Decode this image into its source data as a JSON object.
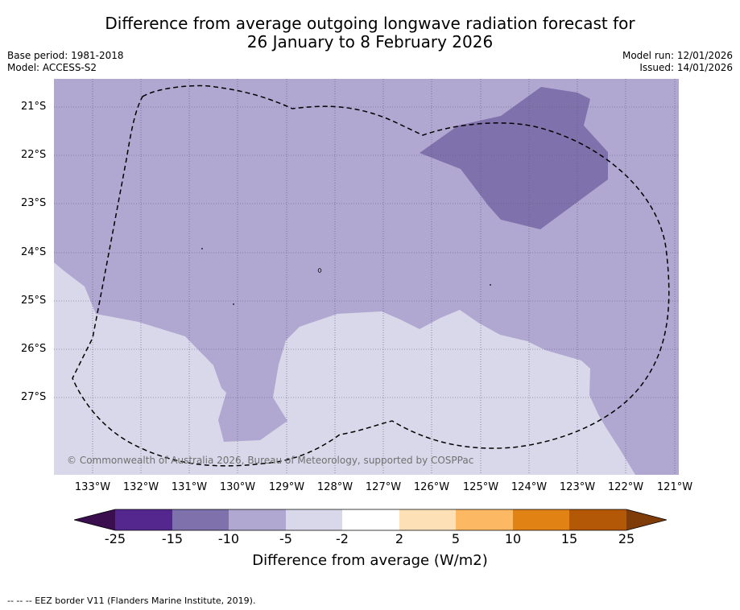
{
  "title": {
    "line1": "Difference from average outgoing longwave radiation forecast for",
    "line2": "26 January to 8 February 2026"
  },
  "meta": {
    "base_period": "Base period: 1981-2018",
    "model": "Model: ACCESS-S2",
    "model_run": "Model run: 12/01/2026",
    "issued": "Issued: 14/01/2026"
  },
  "map": {
    "lat_labels": [
      "21°S",
      "22°S",
      "23°S",
      "24°S",
      "25°S",
      "26°S",
      "27°S"
    ],
    "lon_labels": [
      "133°W",
      "132°W",
      "131°W",
      "130°W",
      "129°W",
      "128°W",
      "127°W",
      "126°W",
      "125°W",
      "124°W",
      "123°W",
      "122°W",
      "121°W"
    ],
    "copyright": "© Commonwealth of Australia 2026, Bureau of Meteorology, supported by COSPPac",
    "colors": {
      "band_-15_-10": "#7f72ac",
      "band_-10_-5": "#b0a8d1",
      "band_-5_-2": "#d9d8ea"
    }
  },
  "colorbar": {
    "ticks": [
      "-25",
      "-15",
      "-10",
      "-5",
      "-2",
      "2",
      "5",
      "10",
      "15",
      "25"
    ],
    "colors": [
      "#3b0f4f",
      "#54278f",
      "#7f72ac",
      "#b0a8d1",
      "#d9d8ea",
      "#ffffff",
      "#fee0b6",
      "#fdb863",
      "#e08214",
      "#b35806",
      "#7f3b08"
    ],
    "label": "Difference from average (W/m2)"
  },
  "footnote": "-- -- -- EEZ border V11 (Flanders Marine Institute, 2019)."
}
